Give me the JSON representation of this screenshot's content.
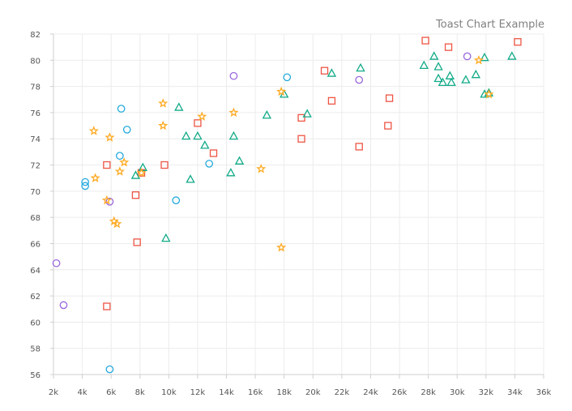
{
  "chart_data": {
    "type": "scatter",
    "title": "Toast Chart Example",
    "xlabel": "",
    "ylabel": "",
    "xlim": [
      2000,
      36000
    ],
    "ylim": [
      56,
      82
    ],
    "grid": true,
    "x_ticks": [
      {
        "value": 2000,
        "label": "2k"
      },
      {
        "value": 4000,
        "label": "4k"
      },
      {
        "value": 6000,
        "label": "6k"
      },
      {
        "value": 8000,
        "label": "8k"
      },
      {
        "value": 10000,
        "label": "10k"
      },
      {
        "value": 12000,
        "label": "12k"
      },
      {
        "value": 14000,
        "label": "14k"
      },
      {
        "value": 16000,
        "label": "16k"
      },
      {
        "value": 18000,
        "label": "18k"
      },
      {
        "value": 20000,
        "label": "20k"
      },
      {
        "value": 22000,
        "label": "22k"
      },
      {
        "value": 24000,
        "label": "24k"
      },
      {
        "value": 26000,
        "label": "26k"
      },
      {
        "value": 28000,
        "label": "28k"
      },
      {
        "value": 30000,
        "label": "30k"
      },
      {
        "value": 32000,
        "label": "32k"
      },
      {
        "value": 34000,
        "label": "34k"
      },
      {
        "value": 36000,
        "label": "36k"
      }
    ],
    "y_ticks": [
      {
        "value": 56,
        "label": "56"
      },
      {
        "value": 58,
        "label": "58"
      },
      {
        "value": 60,
        "label": "60"
      },
      {
        "value": 62,
        "label": "62"
      },
      {
        "value": 64,
        "label": "64"
      },
      {
        "value": 66,
        "label": "66"
      },
      {
        "value": 68,
        "label": "68"
      },
      {
        "value": 70,
        "label": "70"
      },
      {
        "value": 72,
        "label": "72"
      },
      {
        "value": 74,
        "label": "74"
      },
      {
        "value": 76,
        "label": "76"
      },
      {
        "value": 78,
        "label": "78"
      },
      {
        "value": 80,
        "label": "80"
      },
      {
        "value": 82,
        "label": "82"
      }
    ],
    "series": [
      {
        "marker": "circle",
        "color": "#9966dd",
        "points": [
          [
            2200,
            64.5
          ],
          [
            2700,
            61.3
          ],
          [
            5900,
            69.2
          ],
          [
            14500,
            78.8
          ],
          [
            23200,
            78.5
          ],
          [
            30700,
            80.3
          ]
        ]
      },
      {
        "marker": "circle",
        "color": "#22aadd",
        "points": [
          [
            4200,
            70.7
          ],
          [
            4200,
            70.4
          ],
          [
            5900,
            56.4
          ],
          [
            6600,
            72.7
          ],
          [
            6700,
            76.3
          ],
          [
            7100,
            74.7
          ],
          [
            10500,
            69.3
          ],
          [
            12800,
            72.1
          ],
          [
            18200,
            78.7
          ]
        ]
      },
      {
        "marker": "square",
        "color": "#ee5544",
        "points": [
          [
            5700,
            61.2
          ],
          [
            5700,
            72.0
          ],
          [
            7700,
            69.7
          ],
          [
            7800,
            66.1
          ],
          [
            8100,
            71.4
          ],
          [
            9700,
            72.0
          ],
          [
            12000,
            75.2
          ],
          [
            13100,
            72.9
          ],
          [
            19200,
            75.6
          ],
          [
            19200,
            74.0
          ],
          [
            20800,
            79.2
          ],
          [
            21300,
            76.9
          ],
          [
            23200,
            73.4
          ],
          [
            25200,
            75.0
          ],
          [
            25300,
            77.1
          ],
          [
            27800,
            81.5
          ],
          [
            29400,
            81.0
          ],
          [
            34200,
            81.4
          ]
        ]
      },
      {
        "marker": "triangle",
        "color": "#11aa88",
        "points": [
          [
            7700,
            71.2
          ],
          [
            8200,
            71.8
          ],
          [
            9800,
            66.4
          ],
          [
            10700,
            76.4
          ],
          [
            11200,
            74.2
          ],
          [
            11500,
            70.9
          ],
          [
            12000,
            74.2
          ],
          [
            12500,
            73.5
          ],
          [
            14300,
            71.4
          ],
          [
            14500,
            74.2
          ],
          [
            14900,
            72.3
          ],
          [
            16800,
            75.8
          ],
          [
            18000,
            77.4
          ],
          [
            19600,
            75.9
          ],
          [
            21300,
            79.0
          ],
          [
            23300,
            79.4
          ],
          [
            27700,
            79.6
          ],
          [
            28400,
            80.3
          ],
          [
            28700,
            79.5
          ],
          [
            28700,
            78.6
          ],
          [
            29000,
            78.3
          ],
          [
            29500,
            78.8
          ],
          [
            29600,
            78.3
          ],
          [
            30600,
            78.5
          ],
          [
            31300,
            78.9
          ],
          [
            31900,
            80.2
          ],
          [
            31900,
            77.4
          ],
          [
            32200,
            77.5
          ],
          [
            33800,
            80.3
          ]
        ]
      },
      {
        "marker": "star",
        "color": "#ffaa22",
        "points": [
          [
            4800,
            74.6
          ],
          [
            4900,
            71.0
          ],
          [
            5700,
            69.3
          ],
          [
            5900,
            74.1
          ],
          [
            6200,
            67.7
          ],
          [
            6400,
            67.5
          ],
          [
            6600,
            71.5
          ],
          [
            6900,
            72.2
          ],
          [
            8100,
            71.4
          ],
          [
            9600,
            76.7
          ],
          [
            9600,
            75.0
          ],
          [
            12300,
            75.7
          ],
          [
            14500,
            76.0
          ],
          [
            16400,
            71.7
          ],
          [
            17800,
            77.6
          ],
          [
            17800,
            65.7
          ],
          [
            31500,
            80.0
          ],
          [
            32200,
            77.4
          ]
        ]
      }
    ]
  }
}
